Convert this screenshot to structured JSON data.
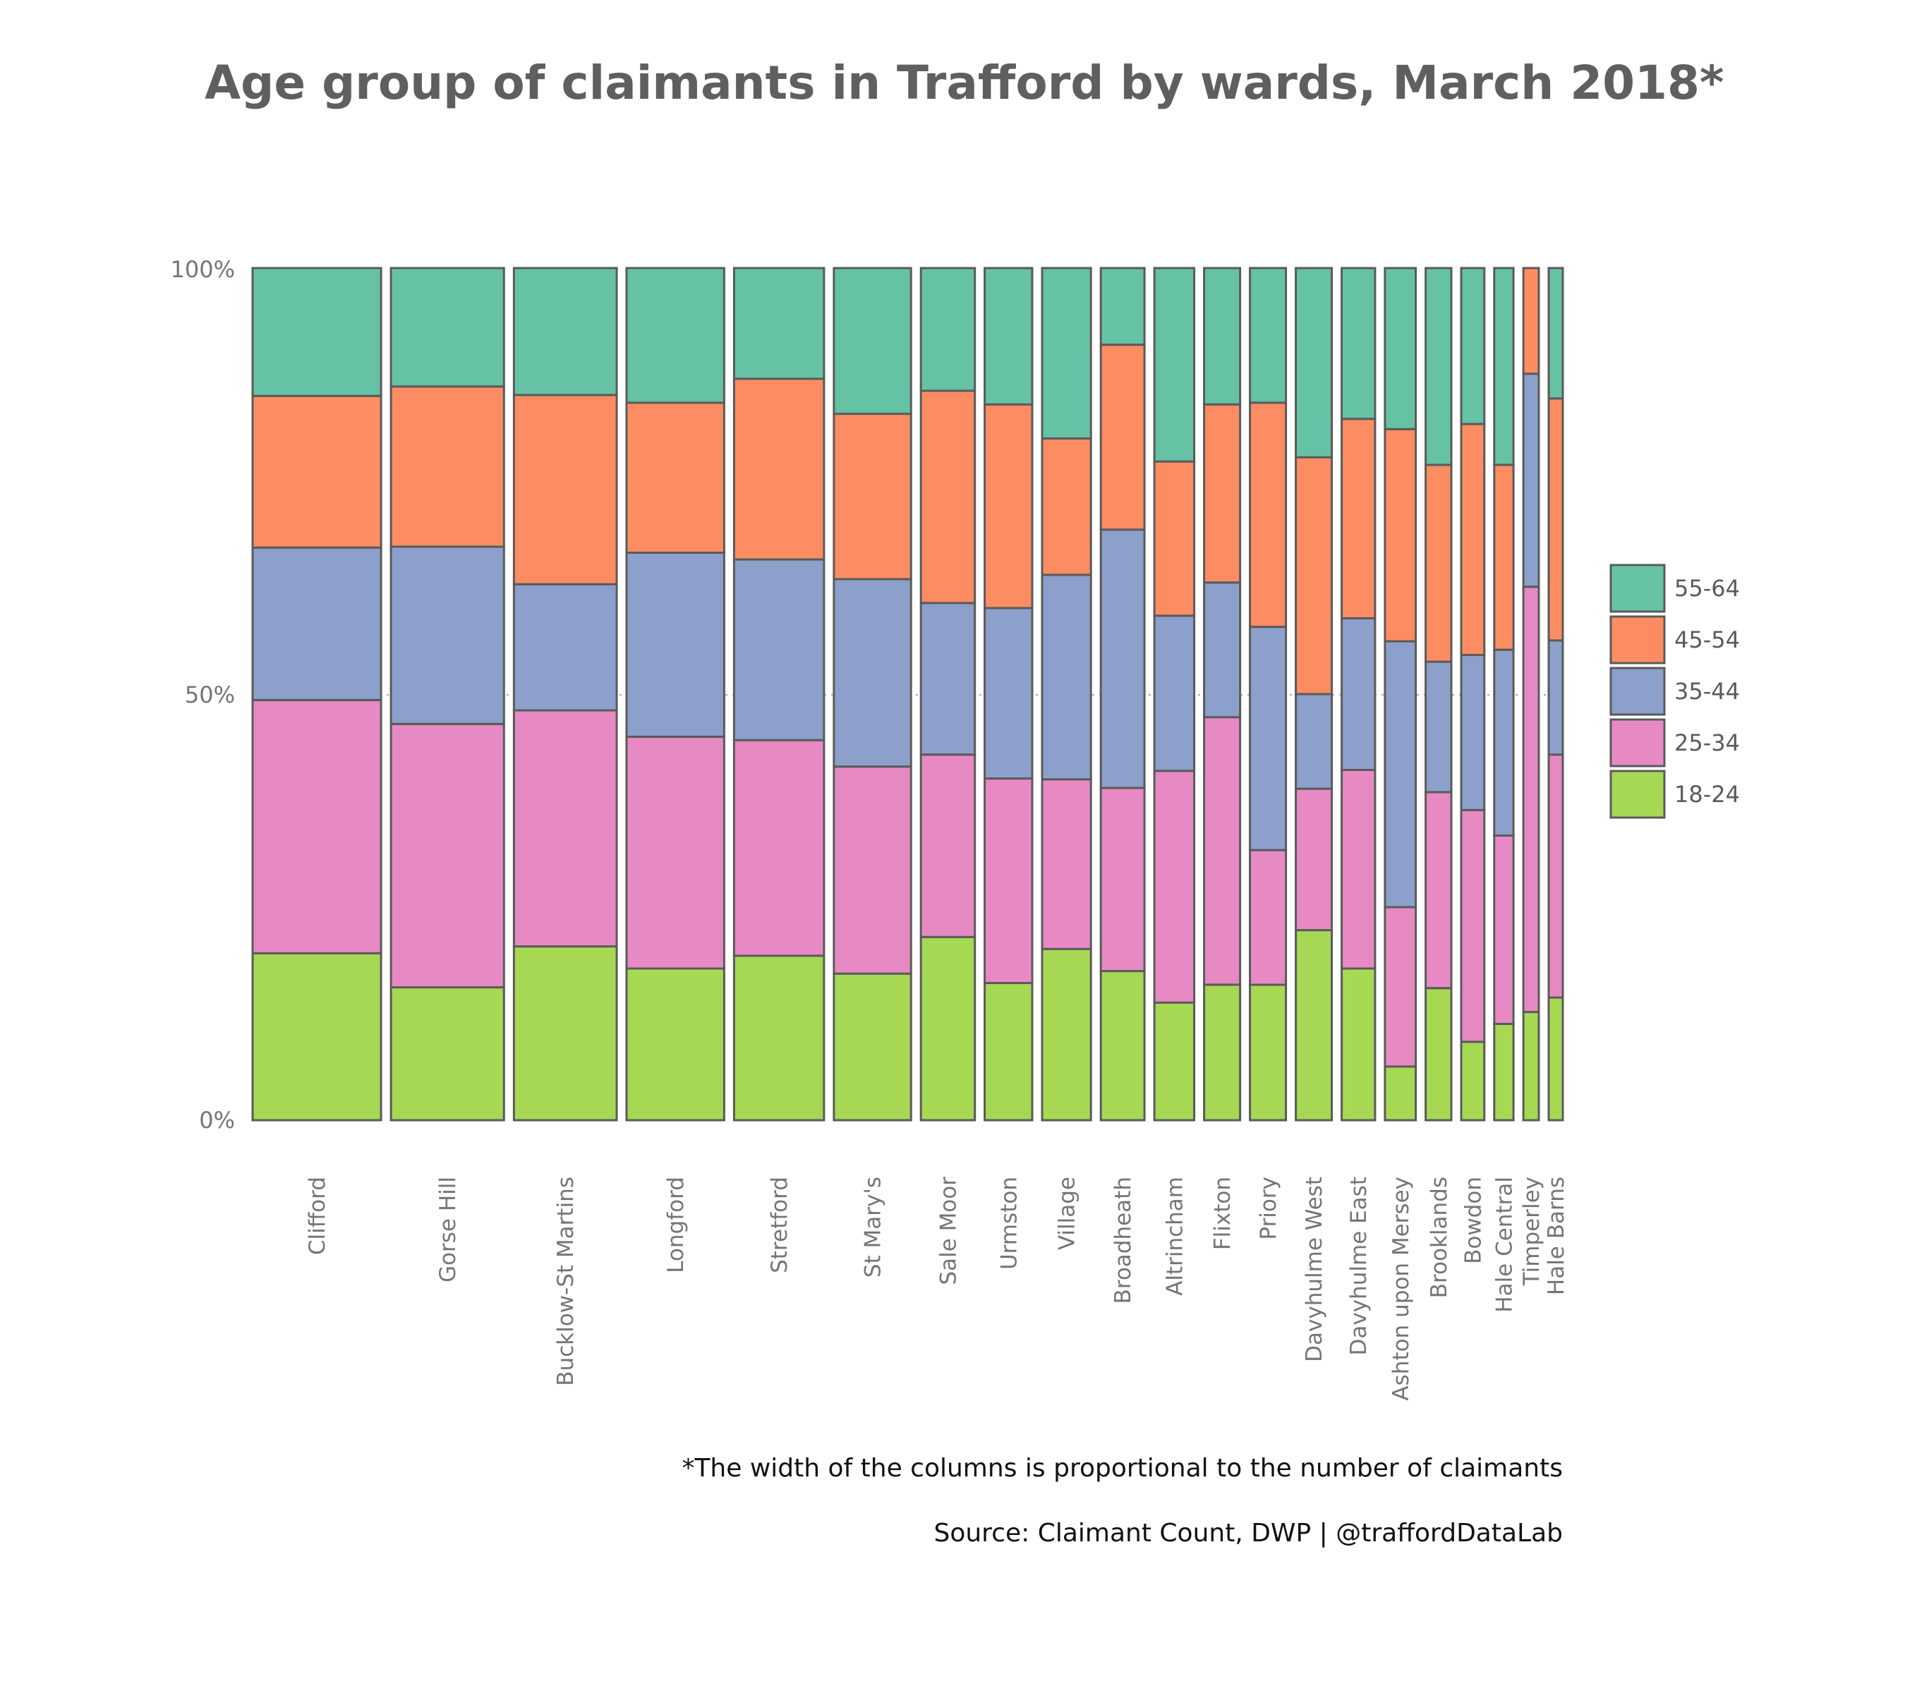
{
  "chart_data": {
    "type": "bar",
    "subtype": "marimekko (variable-width 100% stacked bar)",
    "title": "Age group of claimants in Trafford by wards, March 2018*",
    "xlabel": "",
    "ylabel": "",
    "ylim": [
      0,
      100
    ],
    "y_ticks": [
      "0%",
      "50%",
      "100%"
    ],
    "grid": "dotted horizontal line at 50%",
    "legend_position": "right",
    "categories": [
      "Clifford",
      "Gorse Hill",
      "Bucklow-St Martins",
      "Longford",
      "Stretford",
      "St Mary's",
      "Sale Moor",
      "Urmston",
      "Village",
      "Broadheath",
      "Altrincham",
      "Flixton",
      "Priory",
      "Davyhulme West",
      "Davyhulme East",
      "Ashton upon Mersey",
      "Brooklands",
      "Bowdon",
      "Hale Central",
      "Timperley",
      "Hale Barns"
    ],
    "column_widths_relative": [
      100,
      88,
      80,
      76,
      70,
      60,
      42,
      37,
      38,
      34,
      31,
      28,
      28,
      28,
      26,
      24,
      20,
      18,
      15,
      12,
      11
    ],
    "series": [
      {
        "name": "18-24",
        "color": "#a6d854",
        "values": [
          19.6,
          15.6,
          20.4,
          17.8,
          19.3,
          17.2,
          21.5,
          16.1,
          20.1,
          17.5,
          13.8,
          15.9,
          15.9,
          22.3,
          17.8,
          6.3,
          15.5,
          9.2,
          11.3,
          12.7,
          14.4
        ]
      },
      {
        "name": "25-34",
        "color": "#e78ac3",
        "values": [
          29.7,
          30.9,
          27.7,
          27.2,
          25.3,
          24.3,
          21.4,
          24.0,
          19.9,
          21.5,
          27.2,
          31.4,
          15.8,
          16.6,
          23.3,
          18.7,
          23.0,
          27.2,
          22.1,
          49.9,
          28.5
        ]
      },
      {
        "name": "35-44",
        "color": "#8da0cb",
        "values": [
          17.9,
          20.8,
          14.8,
          21.6,
          21.2,
          22.0,
          17.8,
          20.0,
          24.0,
          30.3,
          18.2,
          15.8,
          26.2,
          11.1,
          17.8,
          31.2,
          15.3,
          18.2,
          21.8,
          25.0,
          13.4
        ]
      },
      {
        "name": "45-54",
        "color": "#fc8d62",
        "values": [
          17.8,
          18.8,
          22.2,
          17.6,
          21.2,
          19.4,
          24.9,
          23.9,
          16.0,
          21.7,
          18.1,
          20.9,
          26.3,
          27.8,
          23.4,
          24.9,
          23.1,
          27.1,
          21.7,
          12.4,
          28.4
        ]
      },
      {
        "name": "55-64",
        "color": "#66c2a5",
        "values": [
          15.0,
          13.9,
          14.9,
          15.8,
          13.0,
          17.1,
          14.4,
          16.0,
          20.0,
          9.0,
          22.7,
          16.0,
          15.8,
          22.2,
          17.7,
          18.9,
          23.1,
          18.3,
          23.1,
          0.0,
          15.3
        ]
      }
    ],
    "legend_order": [
      "55-64",
      "45-54",
      "35-44",
      "25-34",
      "18-24"
    ]
  },
  "captions": {
    "note": "*The width of the columns is proportional to the number of claimants",
    "source": "Source: Claimant Count, DWP  |  @traffordDataLab"
  }
}
